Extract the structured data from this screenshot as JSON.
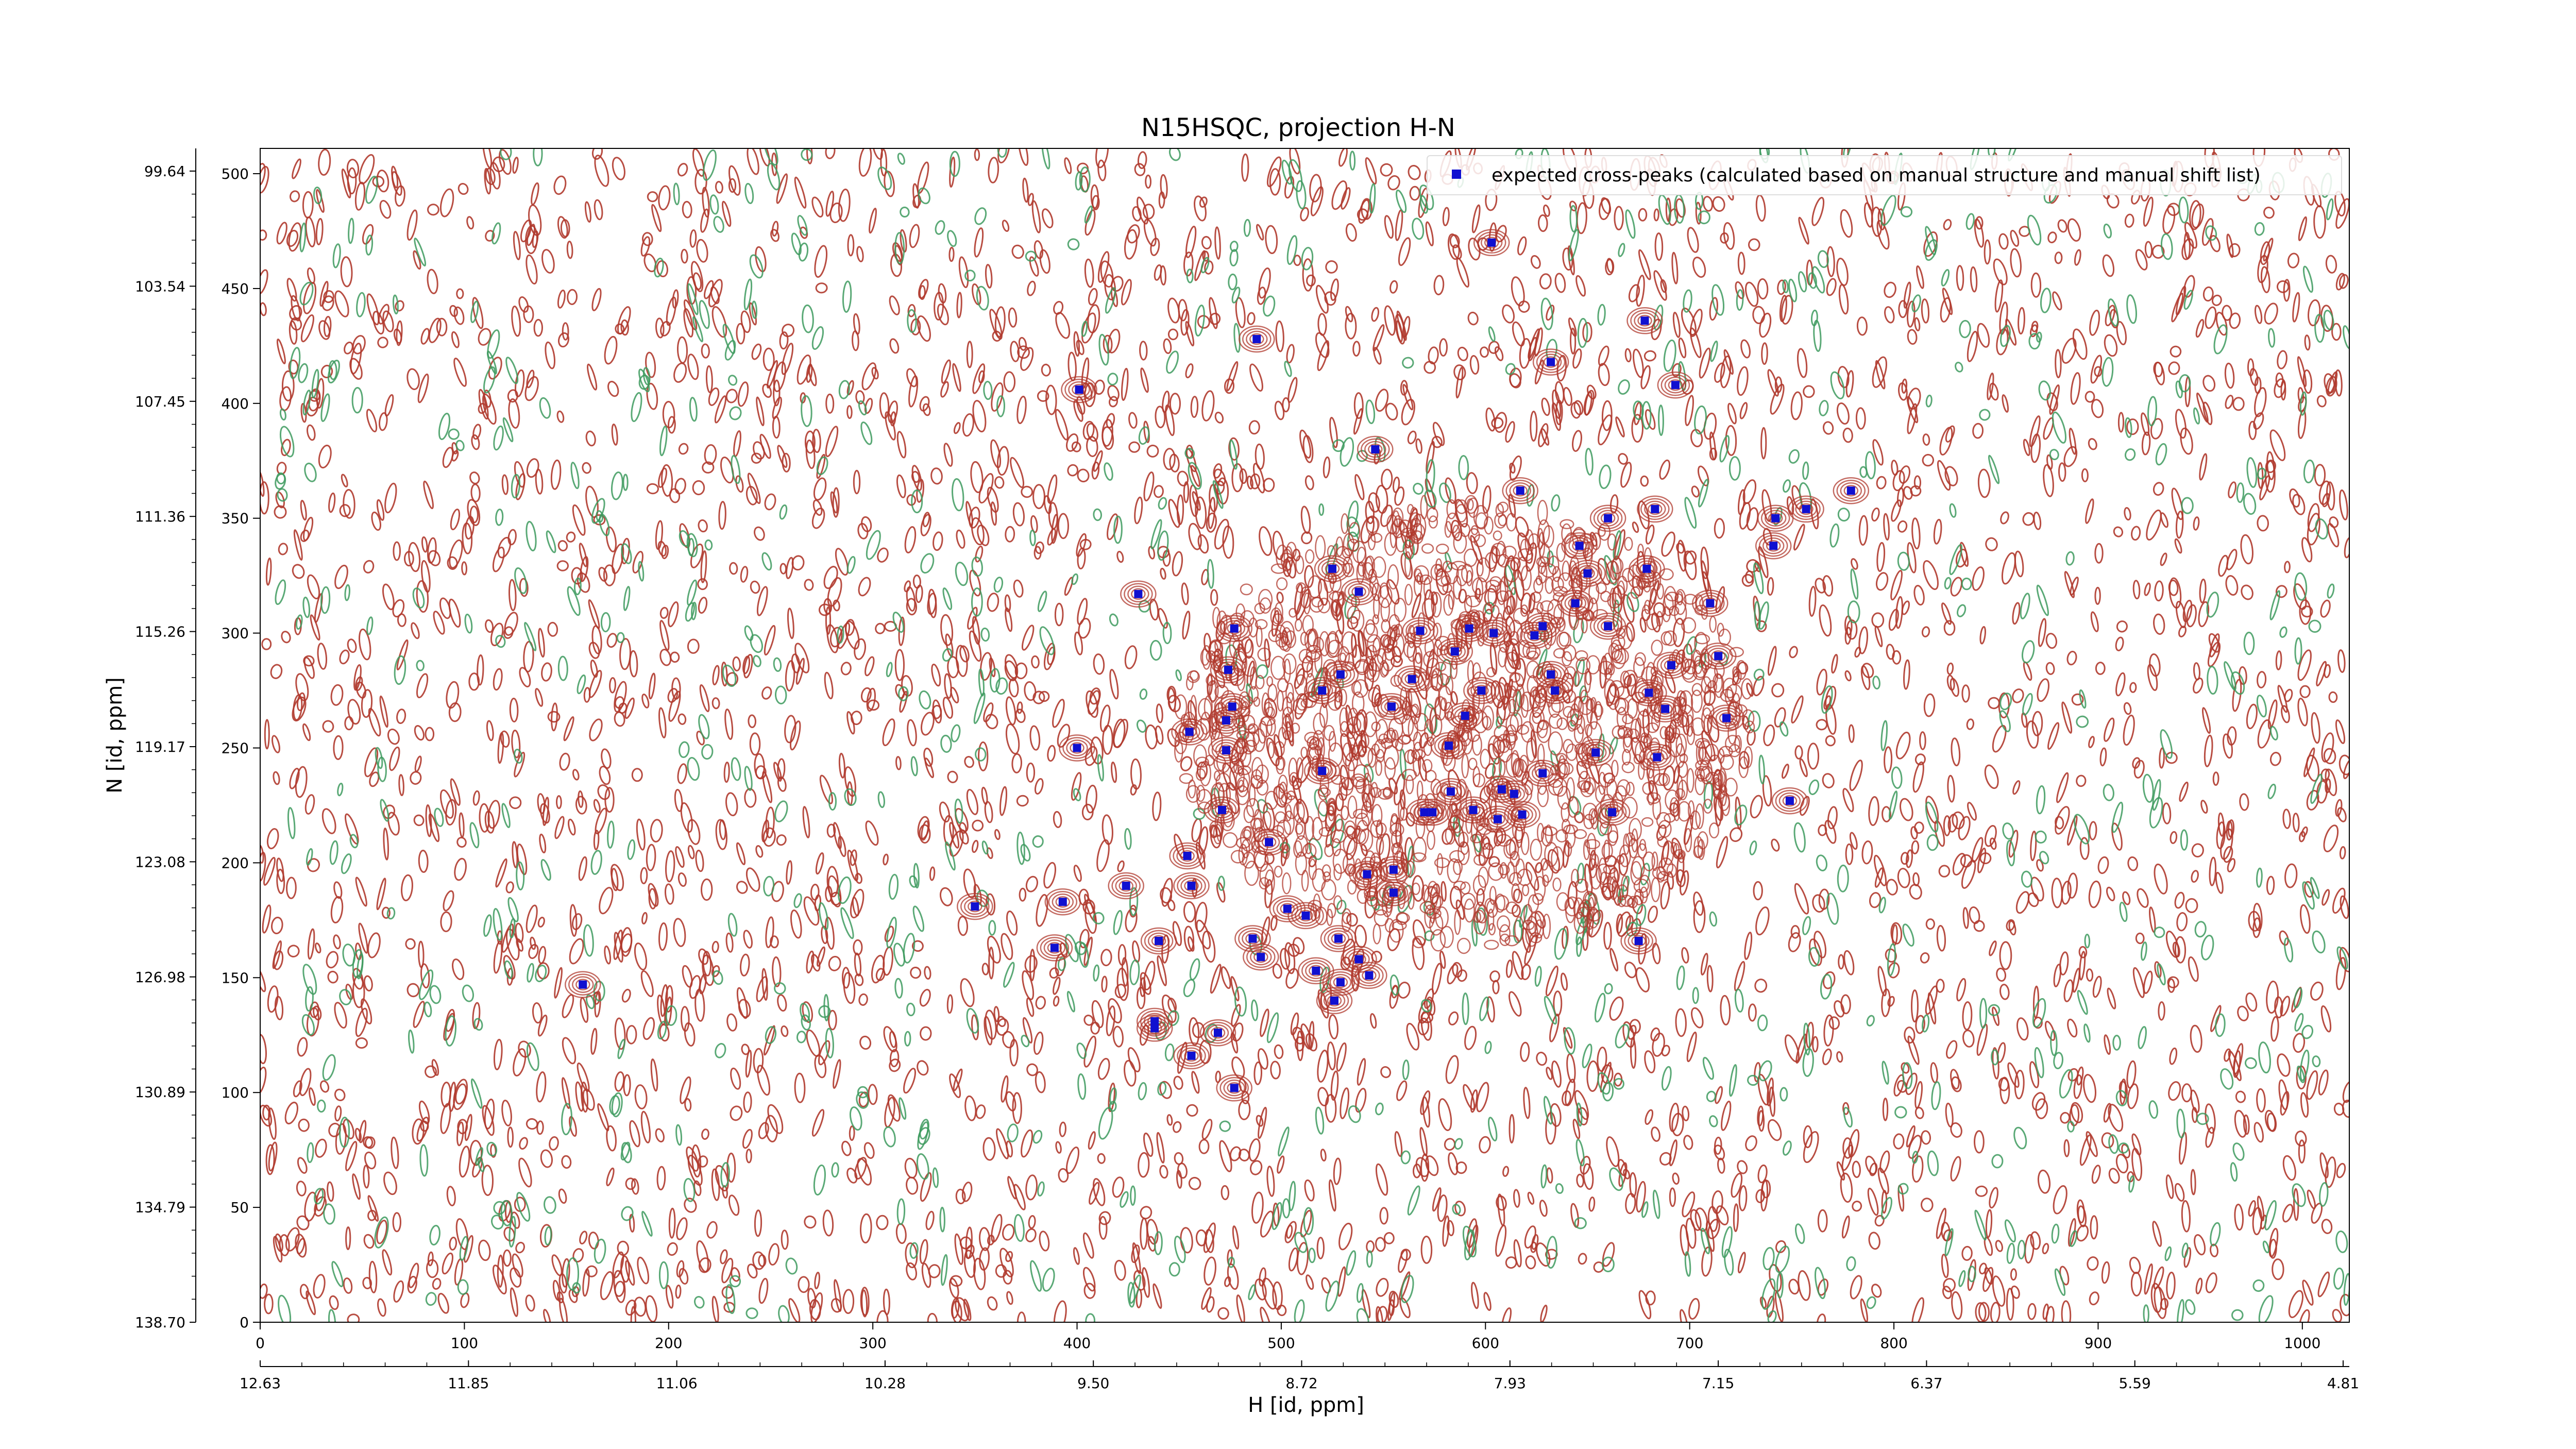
{
  "chart_data": {
    "type": "scatter",
    "title": "N15HSQC, projection H-N",
    "xlabel": "H [id, ppm]",
    "ylabel": "N [id, ppm]",
    "xlim": [
      0,
      1023
    ],
    "ylim": [
      0,
      511
    ],
    "x_index_ticks": [
      "0",
      "100",
      "200",
      "300",
      "400",
      "500",
      "600",
      "700",
      "800",
      "900",
      "1000"
    ],
    "x_ppm_ticks": [
      "12.63",
      "11.85",
      "11.06",
      "10.28",
      "9.50",
      "8.72",
      "7.93",
      "7.15",
      "6.37",
      "5.59",
      "4.81"
    ],
    "y_index_ticks": [
      "0",
      "50",
      "100",
      "150",
      "200",
      "250",
      "300",
      "350",
      "400",
      "450",
      "500"
    ],
    "y_ppm_ticks": [
      "138.70",
      "134.79",
      "130.89",
      "126.98",
      "123.08",
      "119.17",
      "115.26",
      "111.36",
      "107.45",
      "103.54",
      "99.64"
    ],
    "legend": {
      "position": "top-right",
      "label": "expected cross-peaks (calculated based on manual structure and manual shift list)"
    },
    "colors": {
      "positive_contour": "#b03a2e",
      "negative_contour": "#3d9a5e",
      "peak_marker": "#1010d0",
      "background": "#ffffff"
    },
    "series": [
      {
        "name": "expected cross-peaks (calculated based on manual structure and manual shift list)",
        "points": [
          [
            603,
            470
          ],
          [
            678,
            436
          ],
          [
            488,
            428
          ],
          [
            632,
            418
          ],
          [
            693,
            408
          ],
          [
            401,
            406
          ],
          [
            546,
            380
          ],
          [
            617,
            362
          ],
          [
            683,
            354
          ],
          [
            757,
            354
          ],
          [
            779,
            362
          ],
          [
            742,
            350
          ],
          [
            660,
            350
          ],
          [
            646,
            338
          ],
          [
            741,
            338
          ],
          [
            525,
            328
          ],
          [
            650,
            326
          ],
          [
            679,
            328
          ],
          [
            538,
            318
          ],
          [
            430,
            317
          ],
          [
            644,
            313
          ],
          [
            710,
            313
          ],
          [
            477,
            302
          ],
          [
            568,
            301
          ],
          [
            592,
            302
          ],
          [
            604,
            300
          ],
          [
            628,
            303
          ],
          [
            660,
            303
          ],
          [
            585,
            292
          ],
          [
            624,
            299
          ],
          [
            714,
            290
          ],
          [
            474,
            284
          ],
          [
            529,
            282
          ],
          [
            564,
            280
          ],
          [
            632,
            282
          ],
          [
            691,
            286
          ],
          [
            520,
            275
          ],
          [
            598,
            275
          ],
          [
            634,
            275
          ],
          [
            680,
            274
          ],
          [
            476,
            268
          ],
          [
            554,
            268
          ],
          [
            590,
            264
          ],
          [
            688,
            267
          ],
          [
            473,
            262
          ],
          [
            455,
            257
          ],
          [
            718,
            263
          ],
          [
            400,
            250
          ],
          [
            473,
            249
          ],
          [
            582,
            251
          ],
          [
            654,
            248
          ],
          [
            684,
            246
          ],
          [
            520,
            240
          ],
          [
            628,
            239
          ],
          [
            608,
            232
          ],
          [
            583,
            231
          ],
          [
            614,
            230
          ],
          [
            570,
            222
          ],
          [
            574,
            222
          ],
          [
            594,
            223
          ],
          [
            606,
            219
          ],
          [
            618,
            221
          ],
          [
            662,
            222
          ],
          [
            471,
            223
          ],
          [
            749,
            227
          ],
          [
            494,
            209
          ],
          [
            454,
            203
          ],
          [
            542,
            195
          ],
          [
            555,
            197
          ],
          [
            424,
            190
          ],
          [
            456,
            190
          ],
          [
            393,
            183
          ],
          [
            555,
            187
          ],
          [
            350,
            181
          ],
          [
            503,
            180
          ],
          [
            512,
            177
          ],
          [
            440,
            166
          ],
          [
            486,
            167
          ],
          [
            528,
            167
          ],
          [
            389,
            163
          ],
          [
            675,
            166
          ],
          [
            490,
            159
          ],
          [
            538,
            158
          ],
          [
            517,
            153
          ],
          [
            529,
            148
          ],
          [
            158,
            147
          ],
          [
            543,
            151
          ],
          [
            526,
            140
          ],
          [
            438,
            131
          ],
          [
            438,
            128
          ],
          [
            469,
            126
          ],
          [
            456,
            116
          ],
          [
            477,
            102
          ]
        ]
      }
    ]
  }
}
